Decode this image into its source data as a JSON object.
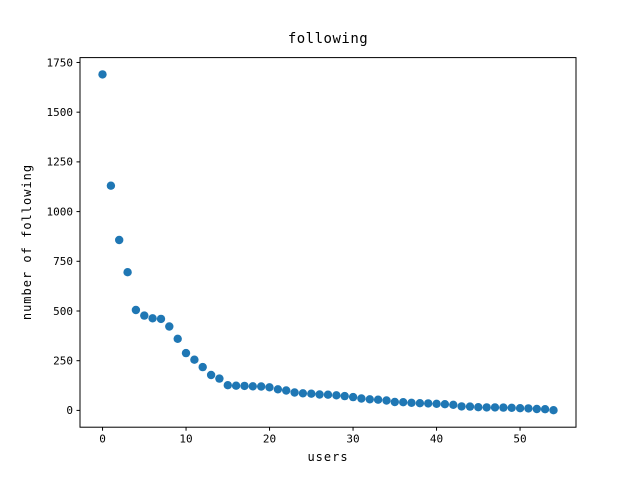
{
  "figure": {
    "background": "#ffffff",
    "spine_color": "#000000"
  },
  "chart_data": {
    "type": "scatter",
    "title": "following",
    "xlabel": "users",
    "ylabel": "number of following",
    "x": [
      0,
      1,
      2,
      3,
      4,
      5,
      6,
      7,
      8,
      9,
      10,
      11,
      12,
      13,
      14,
      15,
      16,
      17,
      18,
      19,
      20,
      21,
      22,
      23,
      24,
      25,
      26,
      27,
      28,
      29,
      30,
      31,
      32,
      33,
      34,
      35,
      36,
      37,
      38,
      39,
      40,
      41,
      42,
      43,
      44,
      45,
      46,
      47,
      48,
      49,
      50,
      51,
      52,
      53,
      54
    ],
    "values": [
      1690,
      1130,
      857,
      695,
      505,
      477,
      463,
      460,
      422,
      360,
      288,
      255,
      218,
      178,
      160,
      127,
      124,
      123,
      121,
      120,
      116,
      106,
      100,
      90,
      86,
      84,
      80,
      79,
      76,
      72,
      67,
      60,
      56,
      54,
      50,
      42,
      41,
      38,
      36,
      35,
      33,
      31,
      28,
      20,
      19,
      16,
      15,
      15,
      14,
      13,
      11,
      10,
      7,
      6,
      1
    ],
    "xticks": [
      0,
      10,
      20,
      30,
      40,
      50
    ],
    "yticks": [
      0,
      250,
      500,
      750,
      1000,
      1250,
      1500,
      1750
    ],
    "xlim": [
      -2.7,
      56.7
    ],
    "ylim": [
      -84.5,
      1774.5
    ],
    "marker_color": "#1f77b4",
    "marker_radius": 4.2,
    "grid": false,
    "legend": "none"
  }
}
